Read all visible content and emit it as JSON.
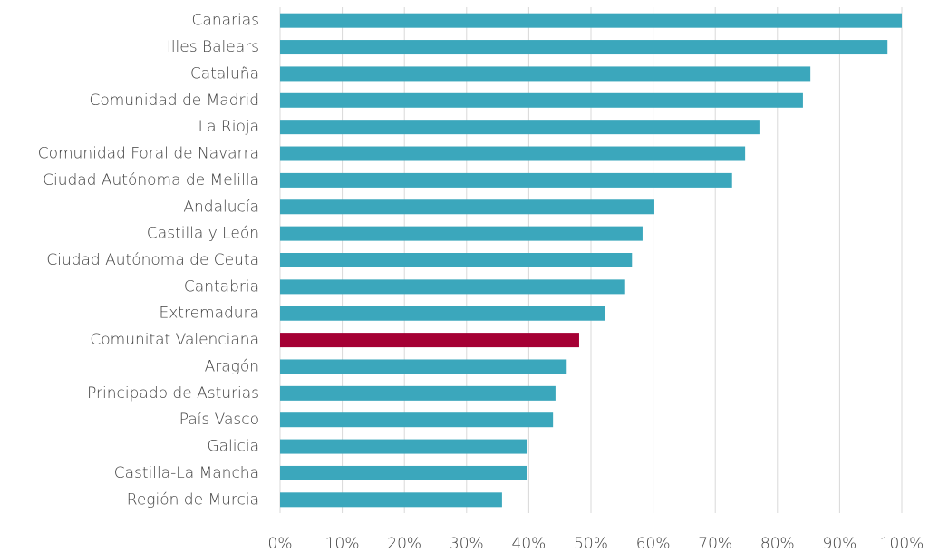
{
  "chart_data": {
    "type": "hbar",
    "categories": [
      "Canarias",
      "Illes Balears",
      "Cataluña",
      "Comunidad de Madrid",
      "La Rioja",
      "Comunidad Foral de Navarra",
      "Ciudad Autónoma de Melilla",
      "Andalucía",
      "Castilla y León",
      "Ciudad Autónoma de Ceuta",
      "Cantabria",
      "Extremadura",
      "Comunitat Valenciana",
      "Aragón",
      "Principado de Asturias",
      "País Vasco",
      "Galicia",
      "Castilla-La Mancha",
      "Región de Murcia"
    ],
    "values": [
      100,
      97.7,
      85.3,
      84.1,
      77.1,
      74.8,
      72.7,
      60.2,
      58.3,
      56.6,
      55.5,
      52.3,
      48.1,
      46.1,
      44.3,
      43.9,
      39.8,
      39.7,
      35.7
    ],
    "colors": [
      "#3ba7bc",
      "#3ba7bc",
      "#3ba7bc",
      "#3ba7bc",
      "#3ba7bc",
      "#3ba7bc",
      "#3ba7bc",
      "#3ba7bc",
      "#3ba7bc",
      "#3ba7bc",
      "#3ba7bc",
      "#3ba7bc",
      "#a50034",
      "#3ba7bc",
      "#3ba7bc",
      "#3ba7bc",
      "#3ba7bc",
      "#3ba7bc",
      "#3ba7bc"
    ],
    "xlim": [
      0,
      100
    ],
    "xticks": [
      {
        "value": 0,
        "label": "0%"
      },
      {
        "value": 10,
        "label": "10%"
      },
      {
        "value": 20,
        "label": "20%"
      },
      {
        "value": 30,
        "label": "30%"
      },
      {
        "value": 40,
        "label": "40%"
      },
      {
        "value": 50,
        "label": "50%"
      },
      {
        "value": 60,
        "label": "60%"
      },
      {
        "value": 70,
        "label": "70%"
      },
      {
        "value": 80,
        "label": "80%"
      },
      {
        "value": 90,
        "label": "90%"
      },
      {
        "value": 100,
        "label": "100%"
      }
    ],
    "grid": true
  }
}
